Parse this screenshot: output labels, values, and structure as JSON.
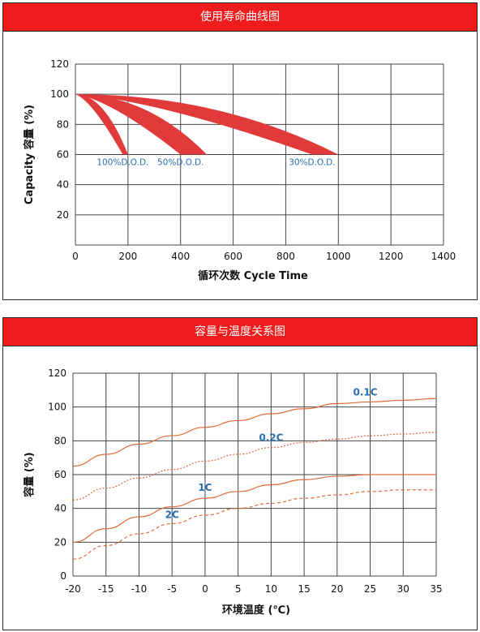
{
  "panels": {
    "cycle_title": "使用寿命曲线图",
    "temp_title": "容量与温度关系图"
  },
  "colors": {
    "header": "#ee1c1c",
    "band": "#e03a3a",
    "temp_curve": "#e06a3a",
    "label": "#2a6fb0"
  },
  "chart_data": [
    {
      "type": "area",
      "ylabel": "Capacity 容量 (%)",
      "xlabel": "循环次数 Cycle Time",
      "xlim": [
        0,
        1400
      ],
      "ylim": [
        0,
        120
      ],
      "x_ticks": [
        "0",
        "200",
        "400",
        "600",
        "800",
        "1000",
        "1200",
        "1400"
      ],
      "y_ticks": [
        "20",
        "40",
        "60",
        "80",
        "100",
        "120"
      ],
      "grid": true,
      "series": [
        {
          "name": "100%D.O.D.",
          "x_start": 0,
          "x_end_low": 180,
          "x_end_high": 200,
          "y_start": 100,
          "y_end": 60
        },
        {
          "name": "50%D.O.D.",
          "x_start": 0,
          "x_end_low": 400,
          "x_end_high": 500,
          "y_start": 100,
          "y_end": 60
        },
        {
          "name": "30%D.O.D.",
          "x_start": 0,
          "x_end_low": 900,
          "x_end_high": 1000,
          "y_start": 100,
          "y_end": 60
        }
      ]
    },
    {
      "type": "line",
      "ylabel": "容量 (%)",
      "xlabel": "环境温度 (℃)",
      "xlim": [
        -20,
        35
      ],
      "ylim": [
        0,
        120
      ],
      "x_ticks": [
        "-20",
        "-15",
        "-10",
        "-5",
        "0",
        "5",
        "10",
        "15",
        "20",
        "25",
        "30",
        "35"
      ],
      "y_ticks": [
        "0",
        "20",
        "40",
        "60",
        "80",
        "100",
        "120"
      ],
      "grid": true,
      "x": [
        -20,
        -15,
        -10,
        -5,
        0,
        5,
        10,
        15,
        20,
        25,
        30,
        35
      ],
      "series": [
        {
          "name": "0.1C",
          "style": "solid",
          "values": [
            65,
            72,
            78,
            83,
            88,
            92,
            96,
            99,
            102,
            103,
            104,
            105
          ]
        },
        {
          "name": "0.2C",
          "style": "dotted",
          "values": [
            45,
            52,
            58,
            63,
            68,
            72,
            76,
            79,
            81,
            83,
            84,
            85
          ]
        },
        {
          "name": "1C",
          "style": "solid",
          "values": [
            20,
            28,
            35,
            41,
            46,
            50,
            54,
            57,
            59,
            60,
            60,
            60
          ]
        },
        {
          "name": "2C",
          "style": "dashed",
          "values": [
            10,
            18,
            25,
            31,
            36,
            40,
            43,
            46,
            48,
            50,
            51,
            51
          ]
        }
      ]
    }
  ]
}
